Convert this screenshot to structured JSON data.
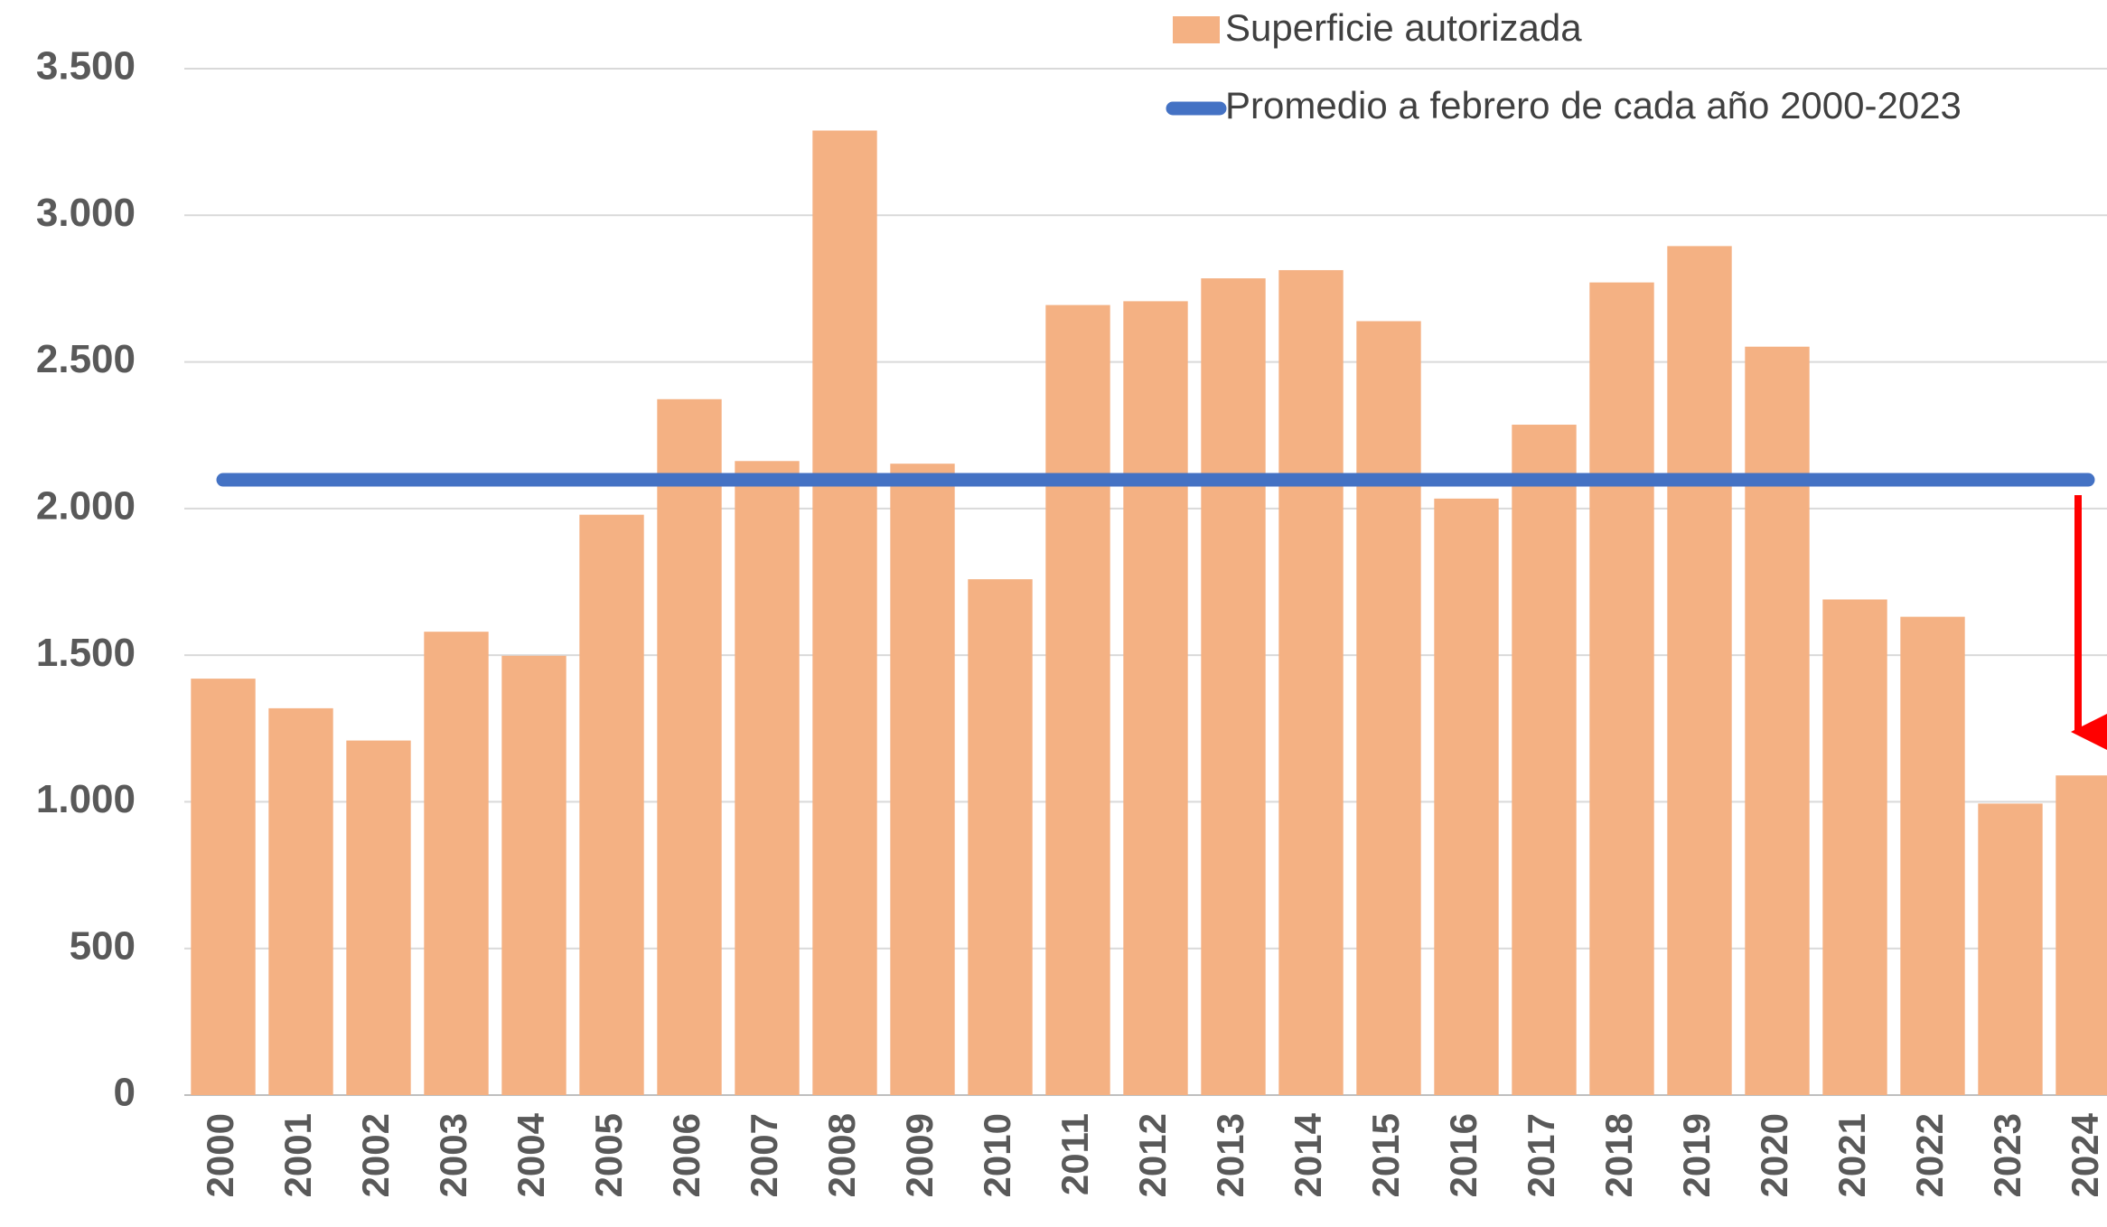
{
  "chart_data": {
    "type": "bar",
    "categories": [
      "2000",
      "2001",
      "2002",
      "2003",
      "2004",
      "2005",
      "2006",
      "2007",
      "2008",
      "2009",
      "2010",
      "2011",
      "2012",
      "2013",
      "2014",
      "2015",
      "2016",
      "2017",
      "2018",
      "2019",
      "2020",
      "2021",
      "2022",
      "2023",
      "2024"
    ],
    "series": [
      {
        "name": "Superficie autorizada",
        "color": "#f4b183",
        "type": "bar",
        "values": [
          1420,
          1319,
          1209,
          1580,
          1498,
          1979,
          2373,
          2162,
          3289,
          2153,
          1759,
          2694,
          2707,
          2785,
          2813,
          2639,
          2034,
          2286,
          2771,
          2895,
          2552,
          1690,
          1631,
          994,
          1090
        ]
      },
      {
        "name": "Promedio a febrero de cada año 2000-2023",
        "color": "#4472c4",
        "type": "line",
        "values": [
          2098,
          2098,
          2098,
          2098,
          2098,
          2098,
          2098,
          2098,
          2098,
          2098,
          2098,
          2098,
          2098,
          2098,
          2098,
          2098,
          2098,
          2098,
          2098,
          2098,
          2098,
          2098,
          2098,
          2098,
          2098
        ]
      }
    ],
    "ylim": [
      0,
      3500
    ],
    "yticks": [
      0,
      500,
      {
        "value": 1000,
        "label": "1.000"
      },
      {
        "value": 1500,
        "label": "1.500"
      },
      {
        "value": 2000,
        "label": "2.000"
      },
      {
        "value": 2500,
        "label": "2.500"
      },
      {
        "value": 3000,
        "label": "3.000"
      },
      {
        "value": 3500,
        "label": "3.500"
      }
    ],
    "grid": true,
    "legend": "top-right"
  }
}
